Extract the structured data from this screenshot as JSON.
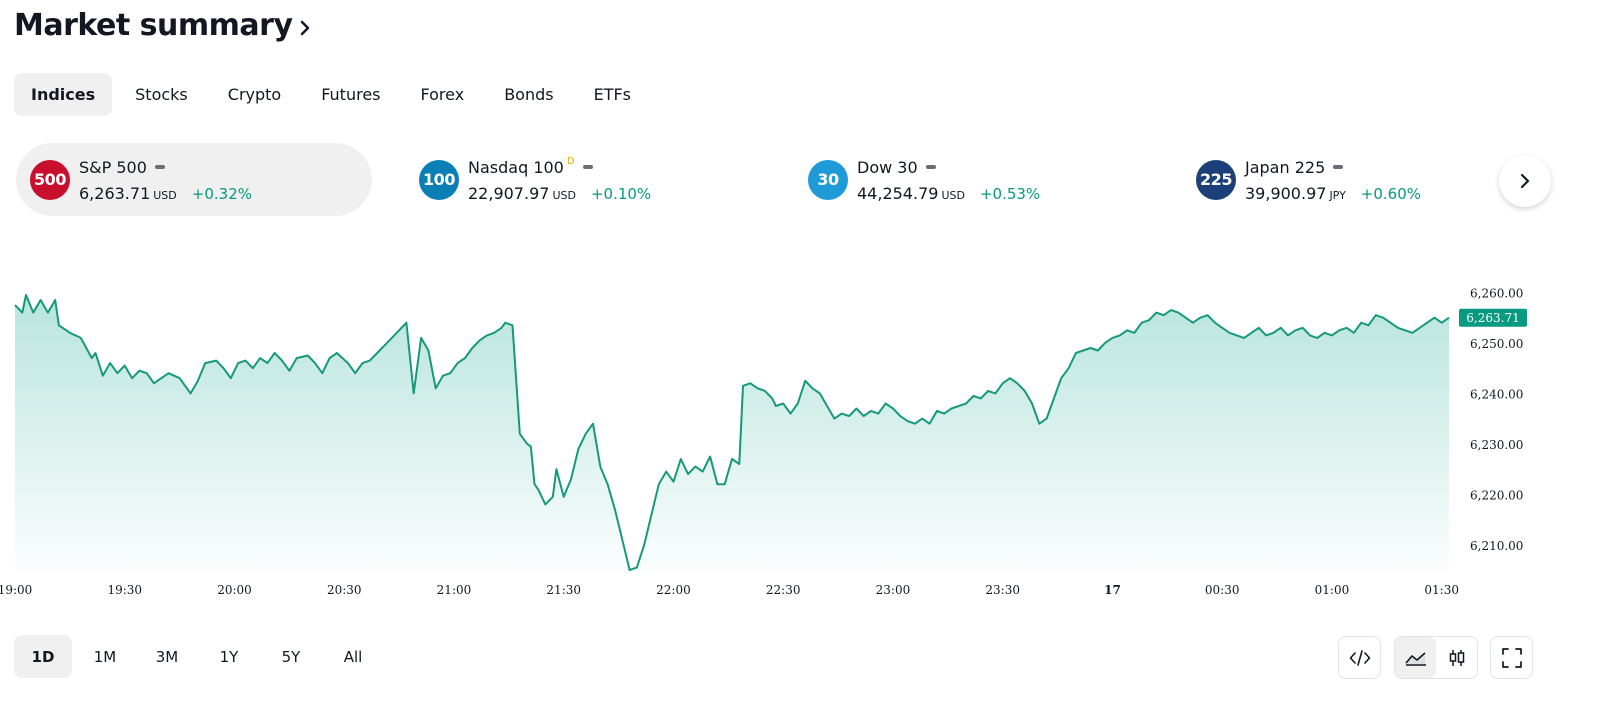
{
  "header": {
    "title": "Market summary"
  },
  "tabs": [
    {
      "label": "Indices",
      "active": true
    },
    {
      "label": "Stocks"
    },
    {
      "label": "Crypto"
    },
    {
      "label": "Futures"
    },
    {
      "label": "Forex"
    },
    {
      "label": "Bonds"
    },
    {
      "label": "ETFs"
    }
  ],
  "tickers": [
    {
      "badge": "500",
      "badge_color": "#c8102e",
      "name": "S&P 500",
      "value": "6,263.71",
      "currency": "USD",
      "change": "+0.32%",
      "delayed": ""
    },
    {
      "badge": "100",
      "badge_color": "#0a7fb5",
      "name": "Nasdaq 100",
      "value": "22,907.97",
      "currency": "USD",
      "change": "+0.10%",
      "delayed": "D"
    },
    {
      "badge": "30",
      "badge_color": "#1e9ad6",
      "name": "Dow 30",
      "value": "44,254.79",
      "currency": "USD",
      "change": "+0.53%",
      "delayed": ""
    },
    {
      "badge": "225",
      "badge_color": "#1c3f7a",
      "name": "Japan 225",
      "value": "39,900.97",
      "currency": "JPY",
      "change": "+0.60%",
      "delayed": ""
    }
  ],
  "colors": {
    "up": "#089981",
    "line": "#16997b",
    "fill": "#22ab94"
  },
  "chart_data": {
    "type": "area",
    "series_name": "",
    "current_price_label": "6,263.71",
    "ylim": [
      6205,
      6270
    ],
    "y_ticks": [
      6260,
      6250,
      6240,
      6230,
      6220,
      6210
    ],
    "y_tick_labels": [
      "6,260.00",
      "6,250.00",
      "6,240.00",
      "6,230.00",
      "6,220.00",
      "6,210.00"
    ],
    "x_ticks": [
      0,
      30,
      60,
      90,
      120,
      150,
      180,
      210,
      240,
      270,
      300,
      330,
      360,
      390
    ],
    "x_tick_labels": [
      "19:00",
      "19:30",
      "20:00",
      "20:30",
      "21:00",
      "21:30",
      "22:00",
      "22:30",
      "23:00",
      "23:30",
      "17",
      "00:30",
      "01:00",
      "01:30"
    ],
    "x_range": [
      0,
      392
    ],
    "points": [
      [
        0,
        6257.5
      ],
      [
        2,
        6256
      ],
      [
        3,
        6259.5
      ],
      [
        5,
        6256
      ],
      [
        7,
        6258.5
      ],
      [
        9,
        6256
      ],
      [
        11,
        6258.5
      ],
      [
        12,
        6253.5
      ],
      [
        15,
        6252
      ],
      [
        18,
        6251
      ],
      [
        21,
        6247
      ],
      [
        22,
        6248
      ],
      [
        24,
        6243.5
      ],
      [
        26,
        6246
      ],
      [
        28,
        6244
      ],
      [
        30,
        6245.5
      ],
      [
        32,
        6243
      ],
      [
        34,
        6244.5
      ],
      [
        36,
        6244
      ],
      [
        38,
        6242
      ],
      [
        40,
        6243
      ],
      [
        42,
        6244
      ],
      [
        45,
        6243
      ],
      [
        48,
        6240
      ],
      [
        50,
        6242.5
      ],
      [
        52,
        6246
      ],
      [
        55,
        6246.5
      ],
      [
        57,
        6245
      ],
      [
        59,
        6243
      ],
      [
        61,
        6246
      ],
      [
        63,
        6246.5
      ],
      [
        65,
        6245
      ],
      [
        67,
        6247
      ],
      [
        69,
        6246
      ],
      [
        71,
        6248
      ],
      [
        73,
        6246.5
      ],
      [
        75,
        6244.5
      ],
      [
        77,
        6247
      ],
      [
        80,
        6247.5
      ],
      [
        82,
        6246
      ],
      [
        84,
        6244
      ],
      [
        86,
        6247
      ],
      [
        88,
        6248
      ],
      [
        91,
        6246
      ],
      [
        93,
        6244
      ],
      [
        95,
        6246
      ],
      [
        97,
        6246.5
      ],
      [
        99,
        6248
      ],
      [
        101,
        6249.5
      ],
      [
        103,
        6251
      ],
      [
        105,
        6252.5
      ],
      [
        107,
        6254
      ],
      [
        109,
        6240
      ],
      [
        111,
        6251
      ],
      [
        113,
        6248.5
      ],
      [
        115,
        6241
      ],
      [
        117,
        6243.5
      ],
      [
        119,
        6244
      ],
      [
        121,
        6246
      ],
      [
        123,
        6247
      ],
      [
        125,
        6249
      ],
      [
        127,
        6250.5
      ],
      [
        129,
        6251.5
      ],
      [
        131,
        6252
      ],
      [
        133,
        6253
      ],
      [
        134,
        6254
      ],
      [
        136,
        6253.5
      ],
      [
        138,
        6232
      ],
      [
        140,
        6230
      ],
      [
        141,
        6229.5
      ],
      [
        142,
        6222
      ],
      [
        143,
        6221
      ],
      [
        145,
        6218
      ],
      [
        147,
        6219.5
      ],
      [
        148,
        6225
      ],
      [
        150,
        6219.5
      ],
      [
        152,
        6223
      ],
      [
        154,
        6229
      ],
      [
        156,
        6232
      ],
      [
        158,
        6234
      ],
      [
        160,
        6225.5
      ],
      [
        162,
        6222
      ],
      [
        164,
        6217
      ],
      [
        166,
        6211
      ],
      [
        168,
        6205
      ],
      [
        170,
        6205.5
      ],
      [
        172,
        6210
      ],
      [
        174,
        6216
      ],
      [
        176,
        6222
      ],
      [
        178,
        6224.5
      ],
      [
        180,
        6222.5
      ],
      [
        182,
        6227
      ],
      [
        184,
        6224
      ],
      [
        186,
        6225.5
      ],
      [
        188,
        6224.5
      ],
      [
        190,
        6227.5
      ],
      [
        192,
        6222
      ],
      [
        194,
        6222
      ],
      [
        196,
        6227
      ],
      [
        198,
        6226
      ],
      [
        199,
        6241.5
      ],
      [
        201,
        6242
      ],
      [
        203,
        6241
      ],
      [
        205,
        6240.5
      ],
      [
        207,
        6239
      ],
      [
        208,
        6237.5
      ],
      [
        210,
        6238
      ],
      [
        212,
        6236
      ],
      [
        214,
        6238
      ],
      [
        216,
        6242.5
      ],
      [
        218,
        6241
      ],
      [
        220,
        6240
      ],
      [
        222,
        6237.5
      ],
      [
        224,
        6235
      ],
      [
        226,
        6236
      ],
      [
        228,
        6235.5
      ],
      [
        230,
        6237
      ],
      [
        232,
        6235.5
      ],
      [
        234,
        6236.5
      ],
      [
        236,
        6236
      ],
      [
        238,
        6238
      ],
      [
        240,
        6237
      ],
      [
        242,
        6235.5
      ],
      [
        244,
        6234.5
      ],
      [
        246,
        6234
      ],
      [
        248,
        6235
      ],
      [
        250,
        6234
      ],
      [
        252,
        6236.5
      ],
      [
        254,
        6236
      ],
      [
        256,
        6237
      ],
      [
        258,
        6237.5
      ],
      [
        260,
        6238
      ],
      [
        262,
        6239.5
      ],
      [
        264,
        6239
      ],
      [
        266,
        6240.5
      ],
      [
        268,
        6240
      ],
      [
        270,
        6242
      ],
      [
        272,
        6243
      ],
      [
        274,
        6242
      ],
      [
        276,
        6240.5
      ],
      [
        278,
        6238
      ],
      [
        280,
        6234
      ],
      [
        282,
        6235
      ],
      [
        284,
        6239
      ],
      [
        286,
        6243
      ],
      [
        288,
        6245
      ],
      [
        290,
        6248
      ],
      [
        292,
        6248.5
      ],
      [
        294,
        6249
      ],
      [
        296,
        6248.5
      ],
      [
        298,
        6250
      ],
      [
        300,
        6251
      ],
      [
        302,
        6251.5
      ],
      [
        304,
        6252.5
      ],
      [
        306,
        6252
      ],
      [
        308,
        6254
      ],
      [
        310,
        6254.5
      ],
      [
        312,
        6256
      ],
      [
        314,
        6255.5
      ],
      [
        316,
        6256.5
      ],
      [
        318,
        6256
      ],
      [
        320,
        6255
      ],
      [
        322,
        6254
      ],
      [
        324,
        6255
      ],
      [
        326,
        6255.5
      ],
      [
        328,
        6254
      ],
      [
        330,
        6253
      ],
      [
        332,
        6252
      ],
      [
        334,
        6251.5
      ],
      [
        336,
        6251
      ],
      [
        338,
        6252
      ],
      [
        340,
        6253
      ],
      [
        342,
        6251.5
      ],
      [
        344,
        6252
      ],
      [
        346,
        6253
      ],
      [
        348,
        6251.5
      ],
      [
        350,
        6252.5
      ],
      [
        352,
        6253
      ],
      [
        354,
        6251.5
      ],
      [
        356,
        6251
      ],
      [
        358,
        6252
      ],
      [
        360,
        6251.5
      ],
      [
        362,
        6252.5
      ],
      [
        364,
        6253
      ],
      [
        366,
        6252
      ],
      [
        368,
        6254
      ],
      [
        370,
        6253.5
      ],
      [
        372,
        6255.5
      ],
      [
        374,
        6255
      ],
      [
        376,
        6254
      ],
      [
        378,
        6253
      ],
      [
        380,
        6252.5
      ],
      [
        382,
        6252
      ],
      [
        384,
        6253
      ],
      [
        386,
        6254
      ],
      [
        388,
        6255
      ],
      [
        390,
        6254
      ],
      [
        392,
        6255
      ]
    ]
  },
  "ranges": [
    {
      "label": "1D",
      "active": true
    },
    {
      "label": "1M"
    },
    {
      "label": "3M"
    },
    {
      "label": "1Y"
    },
    {
      "label": "5Y"
    },
    {
      "label": "All"
    }
  ],
  "toolbar": {
    "embed_icon": "code-icon",
    "area_icon": "area-chart-icon",
    "candle_icon": "candlestick-icon",
    "fullscreen_icon": "fullscreen-icon"
  }
}
